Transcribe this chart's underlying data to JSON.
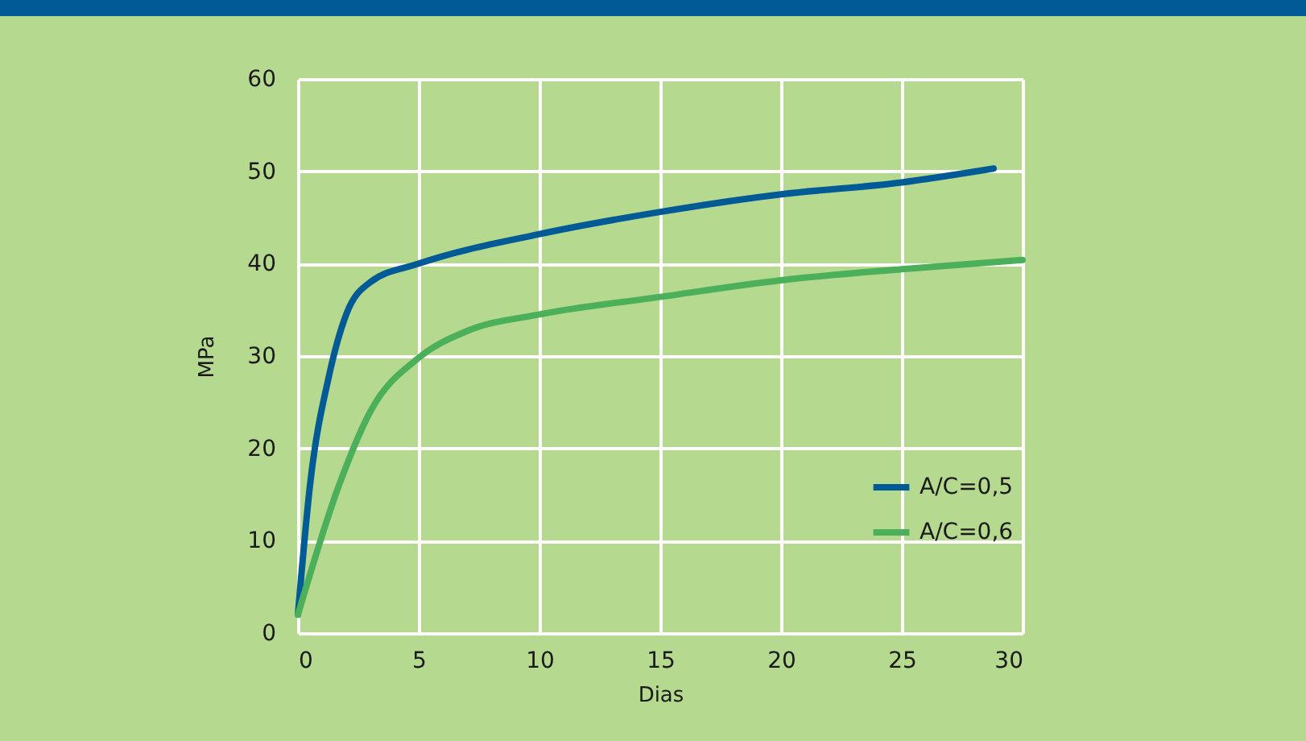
{
  "chart_data": {
    "type": "line",
    "xlabel": "Dias",
    "ylabel": "MPa",
    "xlim": [
      0,
      30
    ],
    "ylim": [
      0,
      60
    ],
    "xticks": [
      0,
      5,
      10,
      15,
      20,
      25,
      30
    ],
    "yticks": [
      0,
      10,
      20,
      30,
      40,
      50,
      60
    ],
    "grid": true,
    "legend": "bottom right",
    "line_style": "solid",
    "series": [
      {
        "name": "A/C=0,5",
        "color": "#005a96",
        "x": [
          0,
          0.5,
          1.3,
          2,
          3,
          5,
          10,
          15,
          20,
          25,
          28.8
        ],
        "values": [
          2,
          16,
          28,
          34.5,
          38,
          40,
          43.2,
          45.6,
          47.5,
          48.8,
          50.3
        ]
      },
      {
        "name": "A/C=0,6",
        "color": "#4cb05a",
        "x": [
          0,
          1.7,
          3,
          5,
          7,
          10,
          15,
          20,
          25,
          30
        ],
        "values": [
          2,
          16,
          24,
          29.8,
          32.7,
          34.5,
          36.4,
          38.2,
          39.4,
          40.4
        ]
      }
    ]
  }
}
